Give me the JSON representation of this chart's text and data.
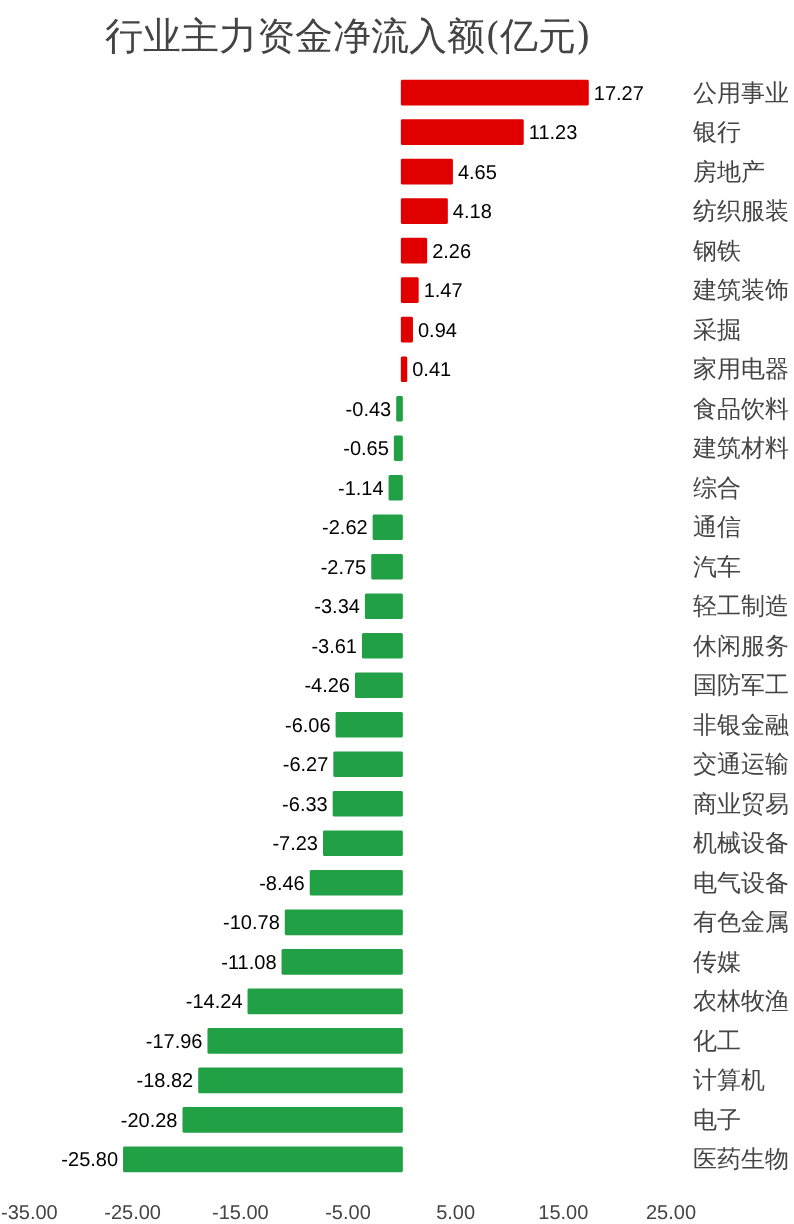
{
  "chart_data": {
    "type": "bar",
    "orientation": "horizontal",
    "title": "行业主力资金净流入额(亿元)",
    "categories": [
      "公用事业",
      "银行",
      "房地产",
      "纺织服装",
      "钢铁",
      "建筑装饰",
      "采掘",
      "家用电器",
      "食品饮料",
      "建筑材料",
      "综合",
      "通信",
      "汽车",
      "轻工制造",
      "休闲服务",
      "国防军工",
      "非银金融",
      "交通运输",
      "商业贸易",
      "机械设备",
      "电气设备",
      "有色金属",
      "传媒",
      "农林牧渔",
      "化工",
      "计算机",
      "电子",
      "医药生物"
    ],
    "values": [
      17.27,
      11.23,
      4.65,
      4.18,
      2.26,
      1.47,
      0.94,
      0.41,
      -0.43,
      -0.65,
      -1.14,
      -2.62,
      -2.75,
      -3.34,
      -3.61,
      -4.26,
      -6.06,
      -6.27,
      -6.33,
      -7.23,
      -8.46,
      -10.78,
      -11.08,
      -14.24,
      -17.96,
      -18.82,
      -20.28,
      -25.8
    ],
    "value_labels": [
      "17.27",
      "11.23",
      "4.65",
      "4.18",
      "2.26",
      "1.47",
      "0.94",
      "0.41",
      "-0.43",
      "-0.65",
      "-1.14",
      "-2.62",
      "-2.75",
      "-3.34",
      "-3.61",
      "-4.26",
      "-6.06",
      "-6.27",
      "-6.33",
      "-7.23",
      "-8.46",
      "-10.78",
      "-11.08",
      "-14.24",
      "-17.96",
      "-18.82",
      "-20.28",
      "-25.80"
    ],
    "colors": [
      "#e00000",
      "#e00000",
      "#e00000",
      "#e00000",
      "#e00000",
      "#e00000",
      "#e00000",
      "#e00000",
      "#21a045",
      "#21a045",
      "#21a045",
      "#21a045",
      "#21a045",
      "#21a045",
      "#21a045",
      "#21a045",
      "#21a045",
      "#21a045",
      "#21a045",
      "#21a045",
      "#21a045",
      "#21a045",
      "#21a045",
      "#21a045",
      "#21a045",
      "#21a045",
      "#21a045",
      "#21a045"
    ],
    "xlim": [
      -35,
      25
    ],
    "xticks": [
      {
        "value": -35,
        "label": "-35.00"
      },
      {
        "value": -25,
        "label": "-25.00"
      },
      {
        "value": -15,
        "label": "-15.00"
      },
      {
        "value": -5,
        "label": "-5.00"
      },
      {
        "value": 5,
        "label": "5.00"
      },
      {
        "value": 15,
        "label": "15.00"
      },
      {
        "value": 25,
        "label": "25.00"
      }
    ],
    "grid": false
  }
}
